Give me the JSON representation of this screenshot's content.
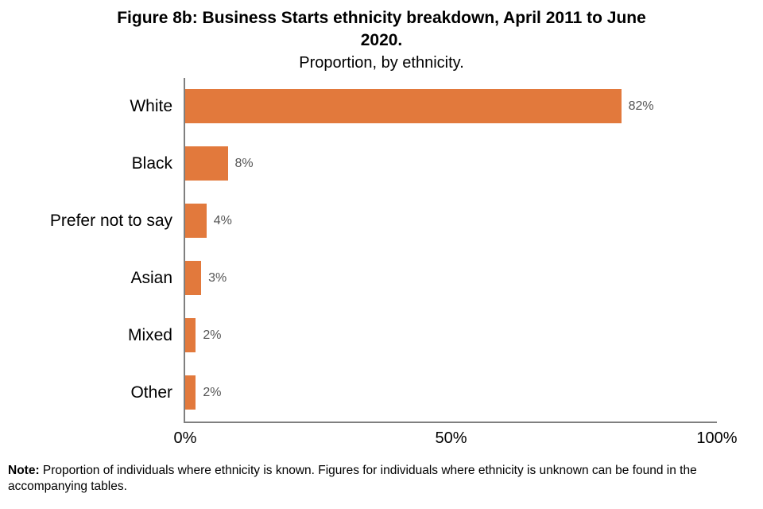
{
  "title": "Figure 8b: Business Starts ethnicity breakdown, April 2011 to June 2020.",
  "subtitle": "Proportion, by ethnicity.",
  "note": {
    "label": "Note:",
    "text": " Proportion of individuals where ethnicity is known. Figures for individuals where ethnicity is unknown can be found in the accompanying tables."
  },
  "colors": {
    "bar": "#E2793C",
    "axis_line": "#7f7f7f",
    "value_label": "#555555",
    "text": "#000000"
  },
  "chart_data": {
    "type": "bar",
    "orientation": "horizontal",
    "title": "Figure 8b: Business Starts ethnicity breakdown, April 2011 to June 2020.",
    "subtitle": "Proportion, by ethnicity.",
    "categories": [
      "White",
      "Black",
      "Prefer not to say",
      "Asian",
      "Mixed",
      "Other"
    ],
    "values": [
      82,
      8,
      4,
      3,
      2,
      2
    ],
    "value_labels": [
      "82%",
      "8%",
      "4%",
      "3%",
      "2%",
      "2%"
    ],
    "xlabel": "",
    "ylabel": "",
    "xlim": [
      0,
      100
    ],
    "x_ticks": [
      {
        "value": 0,
        "label": "0%"
      },
      {
        "value": 50,
        "label": "50%"
      },
      {
        "value": 100,
        "label": "100%"
      }
    ],
    "grid": false,
    "legend": false,
    "bar_color": "#E2793C"
  }
}
